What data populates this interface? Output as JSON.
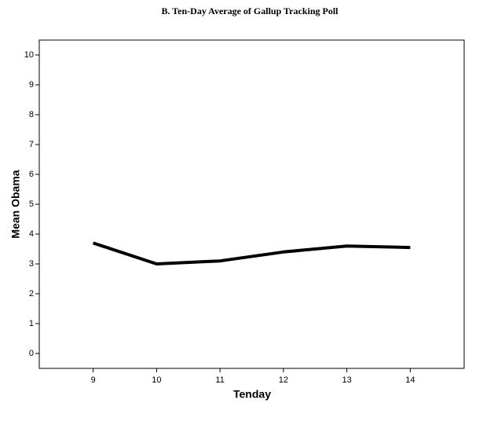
{
  "chart_data": {
    "type": "line",
    "title": "B. Ten-Day Average of Gallup Tracking Poll",
    "x_label": "Tenday",
    "y_label": "Mean Obama",
    "x": [
      9,
      10,
      11,
      12,
      13,
      14
    ],
    "series": [
      {
        "name": "Mean Obama",
        "color": "#000000",
        "values": [
          3.7,
          3.0,
          3.1,
          3.4,
          3.6,
          3.55
        ]
      }
    ],
    "xlim": [
      8.15,
      14.85
    ],
    "xticks": [
      9,
      10,
      11,
      12,
      13,
      14
    ],
    "ylim": [
      -0.5,
      10.5
    ],
    "yticks": [
      0,
      1,
      2,
      3,
      4,
      5,
      6,
      7,
      8,
      9,
      10
    ],
    "grid": false,
    "legend": false
  }
}
